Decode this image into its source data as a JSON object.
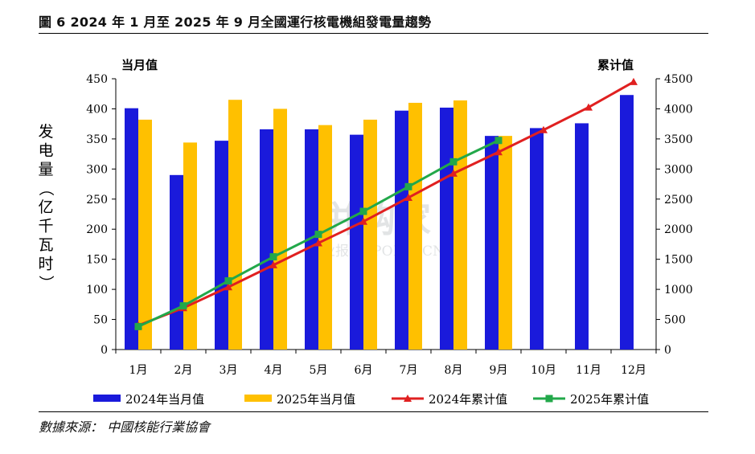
{
  "figure": {
    "title": "圖 6 2024 年 1 月至 2025 年 9 月全國運行核電機組發電量趨勢",
    "source": "數據來源： 中國核能行業協會",
    "watermark": [
      "并购家",
      "行业报告 IPOIPO.CN"
    ]
  },
  "chart_data": {
    "type": "bar",
    "categories": [
      "1月",
      "2月",
      "3月",
      "4月",
      "5月",
      "6月",
      "7月",
      "8月",
      "9月",
      "10月",
      "11月",
      "12月"
    ],
    "left_axis": {
      "label_top": "当月值",
      "label_side": "发电量（亿千瓦时）",
      "ticks": [
        "0",
        "50",
        "100",
        "150",
        "200",
        "250",
        "300",
        "350",
        "400",
        "450"
      ],
      "ylim": [
        0,
        450
      ]
    },
    "right_axis": {
      "label_top": "累计值",
      "ticks": [
        "0",
        "500",
        "1000",
        "1500",
        "2000",
        "2500",
        "3000",
        "3500",
        "4000",
        "4500"
      ],
      "ylim": [
        0,
        4500
      ]
    },
    "series": [
      {
        "name": "2024年当月值",
        "type": "bar",
        "axis": "left",
        "color": "#1a1adb",
        "values": [
          401,
          290,
          347,
          366,
          366,
          357,
          397,
          402,
          355,
          368,
          376,
          423
        ]
      },
      {
        "name": "2025年当月值",
        "type": "bar",
        "axis": "left",
        "color": "#ffc000",
        "values": [
          382,
          344,
          415,
          400,
          373,
          382,
          410,
          414,
          355,
          null,
          null,
          null
        ]
      },
      {
        "name": "2024年累计值",
        "type": "line",
        "axis": "right",
        "color": "#e02020",
        "marker": "triangle",
        "values": [
          401,
          691,
          1038,
          1404,
          1770,
          2127,
          2524,
          2926,
          3281,
          3649,
          4025,
          4448
        ]
      },
      {
        "name": "2025年累计值",
        "type": "line",
        "axis": "right",
        "color": "#22a84a",
        "marker": "square",
        "values": [
          382,
          726,
          1141,
          1541,
          1914,
          2296,
          2706,
          3120,
          3475,
          null,
          null,
          null
        ]
      }
    ],
    "legend_position": "bottom",
    "grid": false
  }
}
